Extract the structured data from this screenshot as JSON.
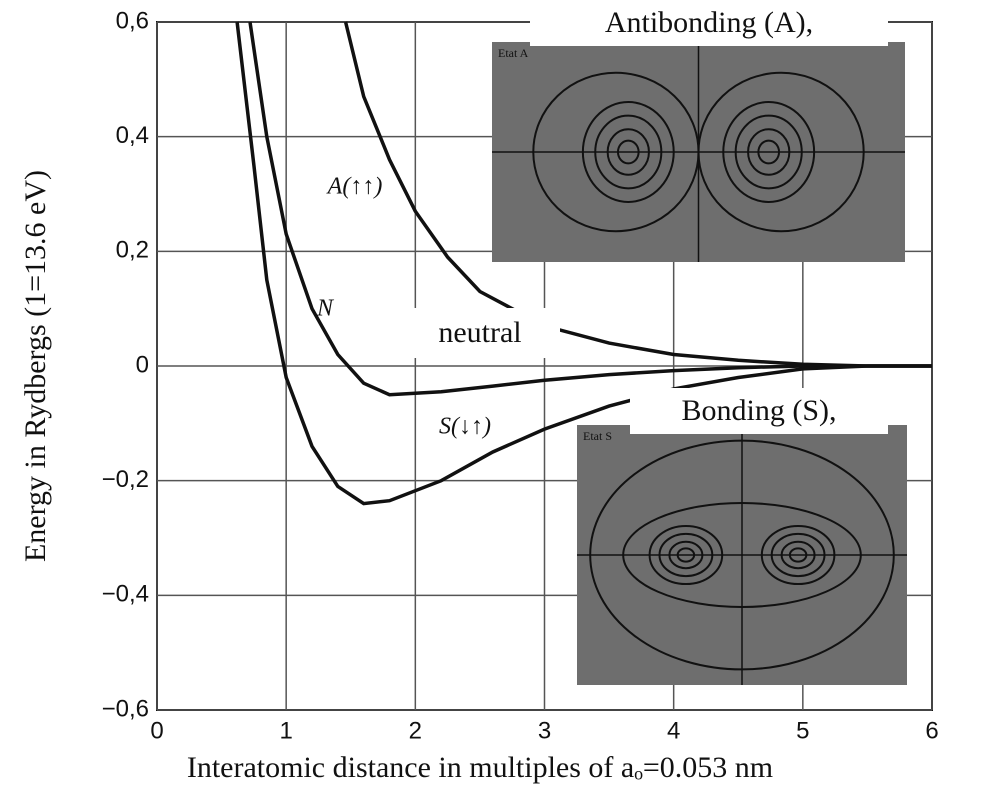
{
  "chart_data": {
    "type": "line",
    "x_label": "Interatomic distance in multiples of aₒ=0.053 nm",
    "y_label": "Energy in Rydbergs (1=13.6 eV)",
    "xlim": [
      0,
      6
    ],
    "ylim": [
      -0.6,
      0.6
    ],
    "xticks": [
      0,
      1,
      2,
      3,
      4,
      5,
      6
    ],
    "yticks": [
      {
        "value": -0.6,
        "label": "−0,6"
      },
      {
        "value": -0.4,
        "label": "−0,4"
      },
      {
        "value": -0.2,
        "label": "−0,2"
      },
      0,
      {
        "value": 0.2,
        "label": "0,2"
      },
      {
        "value": 0.4,
        "label": "0,4"
      },
      {
        "value": 0.6,
        "label": "0,6"
      }
    ],
    "grid": true,
    "series": [
      {
        "name": "A(↑↑)",
        "color": "#111111",
        "x": [
          1.46,
          1.6,
          1.8,
          2.0,
          2.25,
          2.5,
          3.0,
          3.5,
          4.0,
          4.5,
          5.0,
          5.5,
          6.0
        ],
        "values": [
          0.6,
          0.47,
          0.36,
          0.27,
          0.19,
          0.13,
          0.07,
          0.04,
          0.02,
          0.01,
          0.003,
          0,
          0
        ]
      },
      {
        "name": "N",
        "color": "#111111",
        "x": [
          0.72,
          0.85,
          1.0,
          1.2,
          1.4,
          1.6,
          1.8,
          2.2,
          2.6,
          3.0,
          3.5,
          4.0,
          4.5,
          5.0,
          6.0
        ],
        "values": [
          0.6,
          0.4,
          0.23,
          0.1,
          0.02,
          -0.03,
          -0.05,
          -0.045,
          -0.035,
          -0.025,
          -0.015,
          -0.008,
          -0.003,
          0,
          0
        ]
      },
      {
        "name": "S(↓↑)",
        "color": "#111111",
        "x": [
          0.62,
          0.75,
          0.85,
          1.0,
          1.2,
          1.4,
          1.6,
          1.8,
          2.2,
          2.6,
          3.0,
          3.5,
          4.0,
          4.5,
          5.0,
          5.5,
          6.0
        ],
        "values": [
          0.6,
          0.35,
          0.15,
          -0.02,
          -0.14,
          -0.21,
          -0.24,
          -0.235,
          -0.2,
          -0.15,
          -0.11,
          -0.07,
          -0.04,
          -0.02,
          -0.005,
          0,
          0
        ]
      }
    ],
    "annotations": [
      "Antibonding (A),",
      "neutral",
      "Bonding (S),",
      "Etat A",
      "Etat S"
    ]
  }
}
